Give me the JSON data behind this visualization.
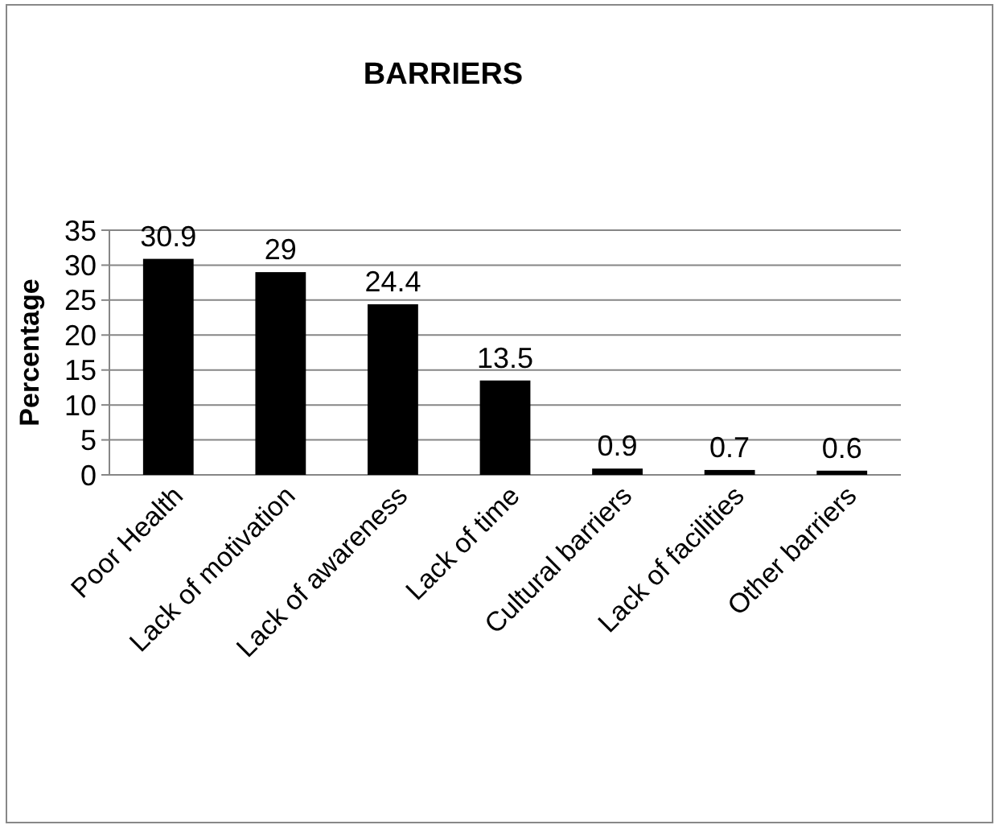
{
  "chart_data": {
    "type": "bar",
    "title": "BARRIERS",
    "ylabel": "Percentage",
    "categories": [
      "Poor Health",
      "Lack of motivation",
      "Lack of awareness",
      "Lack of time",
      "Cultural barriers",
      "Lack of facilities",
      "Other barriers"
    ],
    "values": [
      30.9,
      29,
      24.4,
      13.5,
      0.9,
      0.7,
      0.6
    ],
    "color": "#000000",
    "ylim": [
      0,
      35
    ],
    "yticks": [
      0,
      5,
      10,
      15,
      20,
      25,
      30,
      35
    ],
    "grid": "y",
    "data_labels": true
  }
}
